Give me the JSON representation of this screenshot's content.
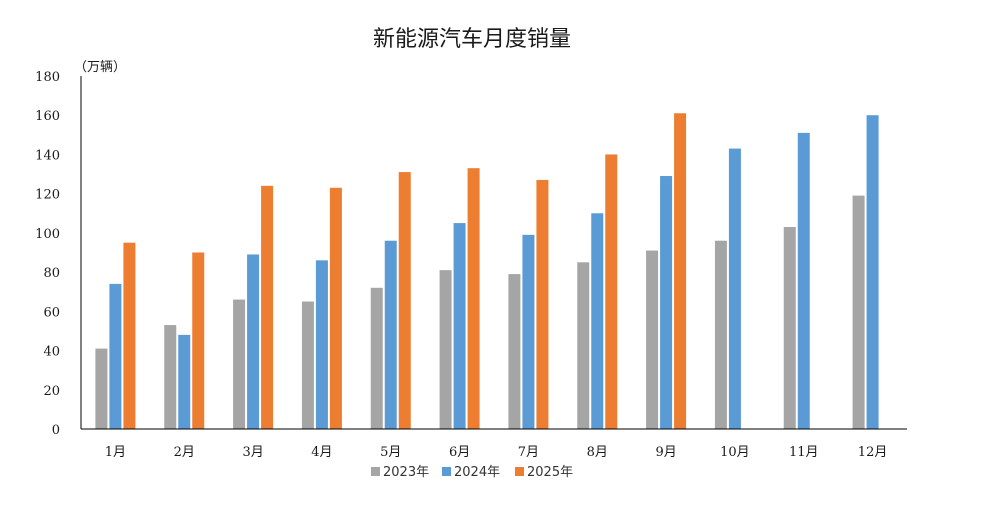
{
  "chart_data": {
    "type": "bar",
    "title": "新能源汽车月度销量",
    "unit_label": "（万辆）",
    "categories": [
      "1月",
      "2月",
      "3月",
      "4月",
      "5月",
      "6月",
      "7月",
      "8月",
      "9月",
      "10月",
      "11月",
      "12月"
    ],
    "ylim": [
      0,
      180
    ],
    "yticks": [
      0,
      20,
      40,
      60,
      80,
      100,
      120,
      140,
      160,
      180
    ],
    "grid": false,
    "legend_position": "bottom",
    "series": [
      {
        "name": "2023年",
        "color": "#a5a5a5",
        "values": [
          41,
          53,
          66,
          65,
          72,
          81,
          79,
          85,
          91,
          96,
          103,
          119
        ]
      },
      {
        "name": "2024年",
        "color": "#5b9bd5",
        "values": [
          74,
          48,
          89,
          86,
          96,
          105,
          99,
          110,
          129,
          143,
          151,
          160
        ]
      },
      {
        "name": "2025年",
        "color": "#ed7d31",
        "values": [
          95,
          90,
          124,
          123,
          131,
          133,
          127,
          140,
          161,
          null,
          null,
          null
        ]
      }
    ]
  }
}
